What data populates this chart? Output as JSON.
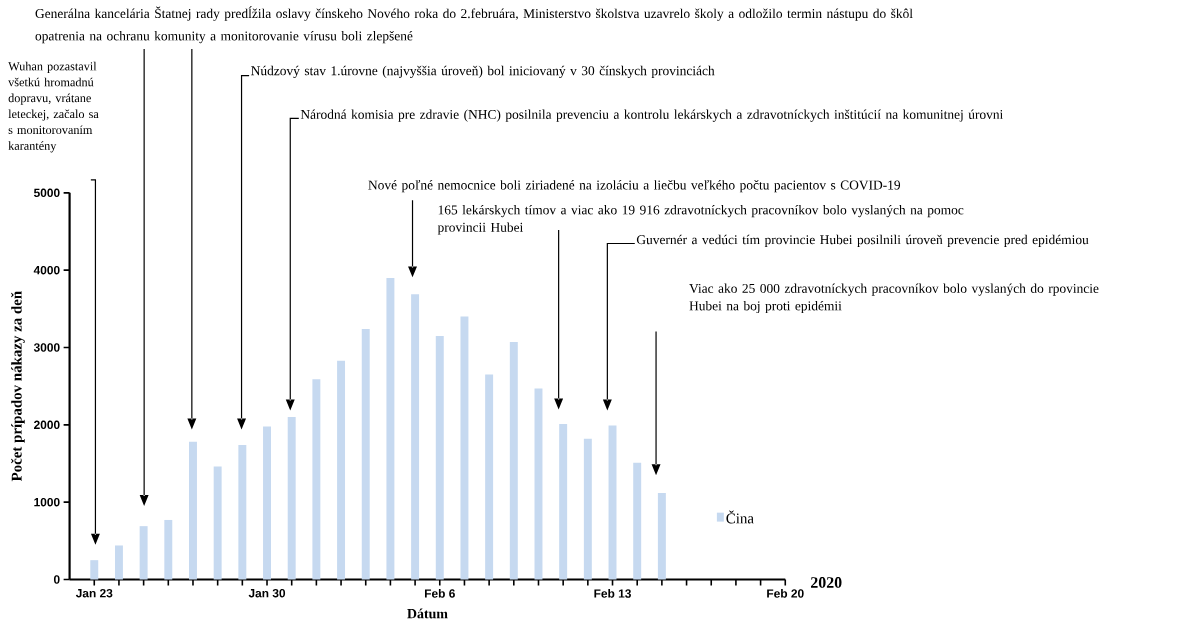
{
  "chart_data": {
    "type": "bar",
    "xlabel": "Dátum",
    "ylabel": "Počet prípadov nákazy za deň",
    "x": [
      "2020-01-23",
      "2020-01-24",
      "2020-01-25",
      "2020-01-26",
      "2020-01-27",
      "2020-01-28",
      "2020-01-29",
      "2020-01-30",
      "2020-01-31",
      "2020-02-01",
      "2020-02-02",
      "2020-02-03",
      "2020-02-04",
      "2020-02-05",
      "2020-02-06",
      "2020-02-07",
      "2020-02-08",
      "2020-02-09",
      "2020-02-10",
      "2020-02-11",
      "2020-02-12",
      "2020-02-13",
      "2020-02-14",
      "2020-02-15"
    ],
    "series": [
      {
        "name": "Čina",
        "color": "#c6d9f0",
        "values": [
          250,
          440,
          690,
          770,
          1780,
          1460,
          1740,
          1980,
          2100,
          2590,
          2830,
          3240,
          3900,
          3690,
          3150,
          3400,
          2650,
          3070,
          2470,
          2010,
          1820,
          1990,
          1510,
          1120
        ]
      }
    ],
    "xlim": [
      "2020-01-22",
      "2020-02-20"
    ],
    "xticks": [
      {
        "value": "2020-01-23",
        "label": "Jan 23"
      },
      {
        "value": "2020-01-24",
        "label": null
      },
      {
        "value": "2020-01-25",
        "label": null
      },
      {
        "value": "2020-01-26",
        "label": null
      },
      {
        "value": "2020-01-27",
        "label": null
      },
      {
        "value": "2020-01-28",
        "label": null
      },
      {
        "value": "2020-01-29",
        "label": null
      },
      {
        "value": "2020-01-30",
        "label": "Jan 30"
      },
      {
        "value": "2020-01-31",
        "label": null
      },
      {
        "value": "2020-02-01",
        "label": null
      },
      {
        "value": "2020-02-02",
        "label": null
      },
      {
        "value": "2020-02-03",
        "label": null
      },
      {
        "value": "2020-02-04",
        "label": null
      },
      {
        "value": "2020-02-05",
        "label": null
      },
      {
        "value": "2020-02-06",
        "label": "Feb 6"
      },
      {
        "value": "2020-02-07",
        "label": null
      },
      {
        "value": "2020-02-08",
        "label": null
      },
      {
        "value": "2020-02-09",
        "label": null
      },
      {
        "value": "2020-02-10",
        "label": null
      },
      {
        "value": "2020-02-11",
        "label": null
      },
      {
        "value": "2020-02-12",
        "label": null
      },
      {
        "value": "2020-02-13",
        "label": "Feb 13"
      },
      {
        "value": "2020-02-14",
        "label": null
      },
      {
        "value": "2020-02-15",
        "label": null
      },
      {
        "value": "2020-02-16",
        "label": null
      },
      {
        "value": "2020-02-17",
        "label": null
      },
      {
        "value": "2020-02-18",
        "label": null
      },
      {
        "value": "2020-02-19",
        "label": null
      },
      {
        "value": "2020-02-20",
        "label": "Feb 20"
      }
    ],
    "ylim": [
      0,
      5000
    ],
    "yticks": [
      0,
      1000,
      2000,
      3000,
      4000,
      5000
    ],
    "legend": "right",
    "annotations": [
      "Wuhan pozastavil všetkú hromadnú dopravu, vrátane leteckej, začalo sa s monitorovaním karantény",
      "Generálna kancelária Štatnej rady predĺžila oslavy čínskeho Nového roka do 2.februára, Ministerstvo školstva uzavrelo školy a odložilo termin nástupu do škôl",
      "opatrenia na ochranu komunity a monitorovanie vírusu boli zlepšené",
      "Núdzový stav 1.úrovne (najvyššia úroveň) bol iniciovaný v 30 čínskych provinciách",
      "Národná komisia pre zdravie (NHC) posilnila prevenciu a kontrolu lekárskych a zdravotníckych inštitúcií na komunitnej úrovni",
      "Nové poľné nemocnice boli ziriadené na izoláciu a liečbu veľkého počtu pacientov s COVID-19",
      "165 lekárskych tímov a viac ako 19 916 zdravotníckych pracovníkov bolo vyslaných na pomoc provincii Hubei",
      "Guvernér a vedúci tím provincie Hubei posilnili úroveň prevencie pred epidémiou",
      "Viac ako 25 000 zdravotníckych pracovníkov bolo vyslaných do rpovincie Hubei na boj proti epidémii",
      "2020"
    ]
  }
}
